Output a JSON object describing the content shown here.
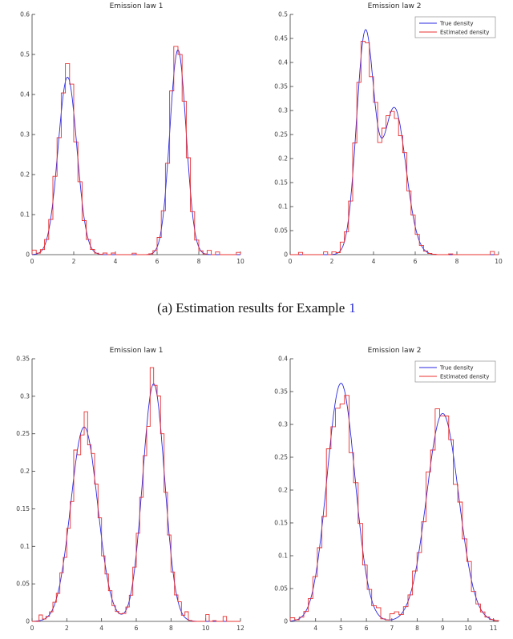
{
  "page": {
    "background": "#ffffff"
  },
  "caption": {
    "text": "(a) Estimation results for Example",
    "link_text": "1",
    "link_color": "#2729d6"
  },
  "chart_data": [
    {
      "type": "line",
      "position": "top-left",
      "title": "Emission law 1",
      "xlabel": "",
      "ylabel": "",
      "xlim": [
        0,
        10
      ],
      "ylim": [
        0,
        0.6
      ],
      "xticks": [
        0,
        2,
        4,
        6,
        8,
        10
      ],
      "yticks": [
        0,
        0.1,
        0.2,
        0.3,
        0.4,
        0.5,
        0.6
      ],
      "grid": false,
      "legend": false,
      "legend_position": null,
      "components": [
        {
          "mean": 1.7,
          "sd": 0.45,
          "weight": 0.5
        },
        {
          "mean": 7.0,
          "sd": 0.39,
          "weight": 0.5
        }
      ],
      "peaks": [
        {
          "x": 1.7,
          "y": 0.44
        },
        {
          "x": 7.0,
          "y": 0.51
        }
      ],
      "series": [
        {
          "name": "True density",
          "type": "smooth",
          "color": "#2a2ae0"
        },
        {
          "name": "Estimated density",
          "type": "step",
          "color": "#e83030",
          "bins": 50,
          "noise_mult": 0.08,
          "spike_prob": 0.16,
          "spike_amp": 0.011,
          "seed": 7
        }
      ]
    },
    {
      "type": "line",
      "position": "top-right",
      "title": "Emission law 2",
      "xlabel": "",
      "ylabel": "",
      "xlim": [
        0,
        10
      ],
      "ylim": [
        0,
        0.5
      ],
      "xticks": [
        0,
        2,
        4,
        6,
        8,
        10
      ],
      "yticks": [
        0,
        0.05,
        0.1,
        0.15,
        0.2,
        0.25,
        0.3,
        0.35,
        0.4,
        0.45,
        0.5
      ],
      "grid": false,
      "legend": true,
      "legend_position": "upper-right",
      "components": [
        {
          "mean": 3.6,
          "sd": 0.42,
          "weight": 0.48
        },
        {
          "mean": 5.0,
          "sd": 0.55,
          "weight": 0.42
        }
      ],
      "peaks": [
        {
          "x": 3.6,
          "y": 0.46
        },
        {
          "x": 5.0,
          "y": 0.31
        }
      ],
      "series": [
        {
          "name": "True density",
          "type": "smooth",
          "color": "#2a2ae0"
        },
        {
          "name": "Estimated density",
          "type": "step",
          "color": "#e83030",
          "bins": 50,
          "noise_mult": 0.08,
          "spike_prob": 0.16,
          "spike_amp": 0.013,
          "seed": 13
        }
      ]
    },
    {
      "type": "line",
      "position": "bottom-left",
      "title": "Emission law 1",
      "xlabel": "",
      "ylabel": "",
      "xlim": [
        0,
        12
      ],
      "ylim": [
        0,
        0.35
      ],
      "xticks": [
        0,
        2,
        4,
        6,
        8,
        10,
        12
      ],
      "yticks": [
        0,
        0.05,
        0.1,
        0.15,
        0.2,
        0.25,
        0.3,
        0.35
      ],
      "grid": false,
      "legend": false,
      "legend_position": null,
      "components": [
        {
          "mean": 3.0,
          "sd": 0.77,
          "weight": 0.5
        },
        {
          "mean": 7.0,
          "sd": 0.63,
          "weight": 0.5
        }
      ],
      "peaks": [
        {
          "x": 3.0,
          "y": 0.26
        },
        {
          "x": 7.0,
          "y": 0.31
        }
      ],
      "series": [
        {
          "name": "True density",
          "type": "smooth",
          "color": "#2a2ae0"
        },
        {
          "name": "Estimated density",
          "type": "step",
          "color": "#e83030",
          "bins": 60,
          "noise_mult": 0.09,
          "spike_prob": 0.14,
          "spike_amp": 0.01,
          "seed": 5
        }
      ]
    },
    {
      "type": "line",
      "position": "bottom-right",
      "title": "Emission law 2",
      "xlabel": "",
      "ylabel": "",
      "xlim": [
        3,
        11.2
      ],
      "ylim": [
        0,
        0.4
      ],
      "xticks": [
        4,
        5,
        6,
        7,
        8,
        9,
        10,
        11
      ],
      "yticks": [
        0,
        0.05,
        0.1,
        0.15,
        0.2,
        0.25,
        0.3,
        0.35,
        0.4
      ],
      "grid": false,
      "legend": true,
      "legend_position": "upper-right",
      "components": [
        {
          "mean": 5.0,
          "sd": 0.55,
          "weight": 0.5
        },
        {
          "mean": 9.0,
          "sd": 0.63,
          "weight": 0.5
        }
      ],
      "peaks": [
        {
          "x": 5.0,
          "y": 0.36
        },
        {
          "x": 9.0,
          "y": 0.31
        }
      ],
      "series": [
        {
          "name": "True density",
          "type": "smooth",
          "color": "#2a2ae0"
        },
        {
          "name": "Estimated density",
          "type": "step",
          "color": "#e83030",
          "bins": 46,
          "noise_mult": 0.1,
          "spike_prob": 0.24,
          "spike_amp": 0.015,
          "seed": 29
        }
      ]
    }
  ]
}
